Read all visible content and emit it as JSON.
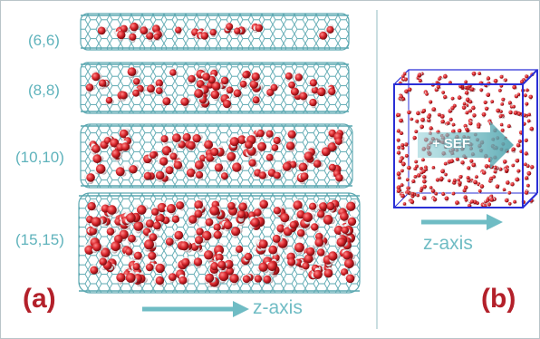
{
  "labels": {
    "tube1": "(6,6)",
    "tube2": "(8,8)",
    "tube3": "(10,10)",
    "tube4": "(15,15)",
    "panel_a": "(a)",
    "panel_b": "(b)",
    "axis_a": "z-axis",
    "axis_b": "z-axis",
    "field": "+ SEF"
  },
  "colors": {
    "nanotube": "#5aa7b0",
    "oxygen": "#d8262c",
    "hydrogen": "#f1eef0",
    "label": "#5fb3bc",
    "panel_letter": "#b3202a",
    "box": "#2a2fd6",
    "arrow": "#6fbcc4"
  }
}
